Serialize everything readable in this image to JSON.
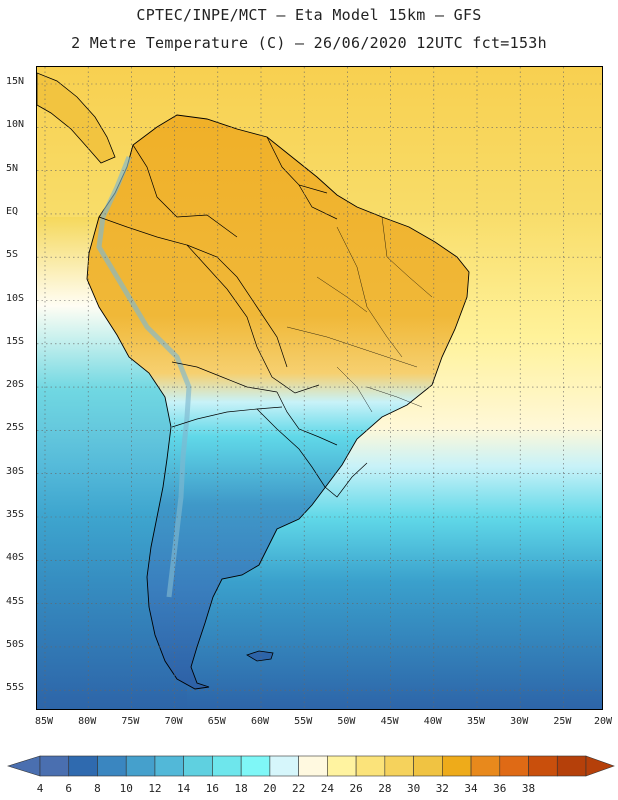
{
  "header": {
    "line1": "CPTEC/INPE/MCT –  Eta Model 15km – GFS",
    "line2": "2 Metre Temperature (C) – 26/06/2020 12UTC fct=153h"
  },
  "map": {
    "lat_labels": [
      "15N",
      "10N",
      "5N",
      "EQ",
      "5S",
      "10S",
      "15S",
      "20S",
      "25S",
      "30S",
      "35S",
      "40S",
      "45S",
      "50S",
      "55S"
    ],
    "lon_labels": [
      "85W",
      "80W",
      "75W",
      "70W",
      "65W",
      "60W",
      "55W",
      "50W",
      "45W",
      "40W",
      "35W",
      "30W",
      "25W",
      "20W"
    ],
    "extent": {
      "lon_min": -86,
      "lon_max": -20,
      "lat_min": -58,
      "lat_max": 16
    }
  },
  "colorbar": {
    "labels": [
      "4",
      "6",
      "8",
      "10",
      "12",
      "14",
      "16",
      "18",
      "20",
      "22",
      "24",
      "26",
      "28",
      "30",
      "32",
      "34",
      "36",
      "38"
    ],
    "colors": [
      "#4a6fb0",
      "#2f6aaf",
      "#3a86c0",
      "#45a0cc",
      "#52b8d8",
      "#5fd0e0",
      "#6ee6ec",
      "#7ff7f7",
      "#d6f6fb",
      "#fff9e0",
      "#fff3a0",
      "#fbe37a",
      "#f5d25c",
      "#f0c342",
      "#eeab1a",
      "#e8891c",
      "#df6a15",
      "#c94f0c",
      "#b5400a"
    ]
  }
}
